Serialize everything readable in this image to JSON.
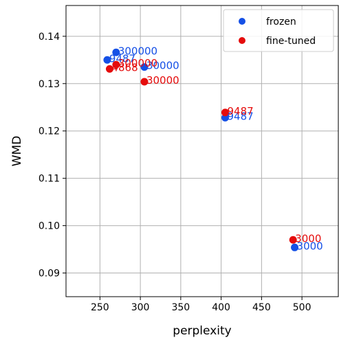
{
  "chart_data": {
    "type": "scatter",
    "xlabel": "perplexity",
    "ylabel": "WMD",
    "xlim": [
      208,
      545
    ],
    "ylim": [
      0.085,
      0.1465
    ],
    "xticks": [
      250,
      300,
      350,
      400,
      450,
      500
    ],
    "yticks": [
      0.09,
      0.1,
      0.11,
      0.12,
      0.13,
      0.14
    ],
    "ytick_labels": [
      "0.09",
      "0.10",
      "0.11",
      "0.12",
      "0.13",
      "0.14"
    ],
    "grid": true,
    "legend_position": "top-right",
    "series": [
      {
        "name": "frozen",
        "color": "#1550e6",
        "points": [
          {
            "x": 259,
            "y": 0.135,
            "label": "9487"
          },
          {
            "x": 270,
            "y": 0.1366,
            "label": "300000"
          },
          {
            "x": 305,
            "y": 0.1335,
            "label": "30000"
          },
          {
            "x": 405,
            "y": 0.1228,
            "label": "9487"
          },
          {
            "x": 491,
            "y": 0.0954,
            "label": "3000"
          }
        ]
      },
      {
        "name": "fine-tuned",
        "color": "#e50c0c",
        "points": [
          {
            "x": 262,
            "y": 0.1331,
            "label": "4868"
          },
          {
            "x": 270,
            "y": 0.134,
            "label": "300000"
          },
          {
            "x": 305,
            "y": 0.1304,
            "label": "30000"
          },
          {
            "x": 405,
            "y": 0.1239,
            "label": "9487"
          },
          {
            "x": 489,
            "y": 0.097,
            "label": "3000"
          }
        ]
      }
    ]
  }
}
